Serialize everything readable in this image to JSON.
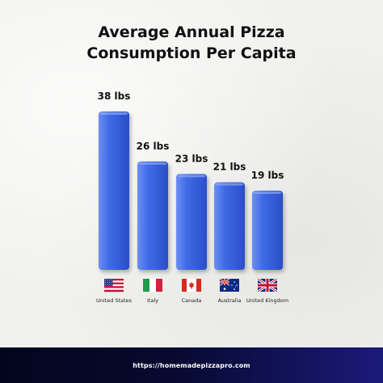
{
  "title_line1": "Average Annual Pizza",
  "title_line2": "Consumption Per Capita",
  "footer_url": "https://homemadepizzapro.com",
  "colors": {
    "bar": "#3f6ae6",
    "bar_top": "#6c8ff2",
    "bar_side": "#2a4fc7"
  },
  "chart_data": {
    "type": "bar",
    "title": "Average Annual Pizza Consumption Per Capita",
    "categories": [
      "United States",
      "Italy",
      "Canada",
      "Australia",
      "United Kingdom"
    ],
    "values": [
      38,
      26,
      23,
      21,
      19
    ],
    "value_labels": [
      "38 lbs",
      "26 lbs",
      "23 lbs",
      "21 lbs",
      "19 lbs"
    ],
    "flags": [
      "us-flag-icon",
      "italy-flag-icon",
      "canada-flag-icon",
      "australia-flag-icon",
      "uk-flag-icon"
    ],
    "xlabel": "",
    "ylabel": "",
    "ylim": [
      0,
      38
    ],
    "grid": false,
    "legend": "none"
  }
}
